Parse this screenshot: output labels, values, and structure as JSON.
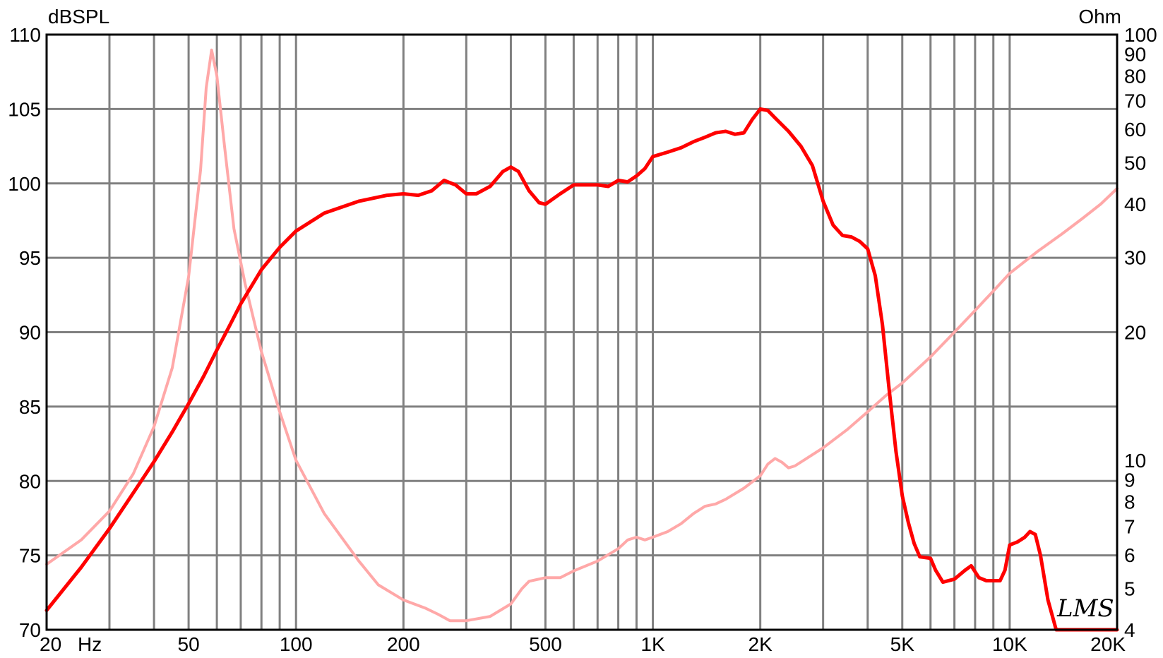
{
  "chart_data": {
    "type": "line",
    "title": "",
    "x_scale": "log",
    "xlim": [
      20,
      20000
    ],
    "x_tick_values": [
      20,
      50,
      100,
      200,
      500,
      1000,
      2000,
      5000,
      10000,
      20000
    ],
    "x_tick_labels": [
      "20",
      "50",
      "100",
      "200",
      "500",
      "1K",
      "2K",
      "5K",
      "10K",
      "20K"
    ],
    "x_unit_label": "Hz",
    "y_left": {
      "label": "dBSPL",
      "lim": [
        70,
        110
      ],
      "ticks": [
        70,
        75,
        80,
        85,
        90,
        95,
        100,
        105,
        110
      ]
    },
    "y_right": {
      "label": "Ohm",
      "scale": "log",
      "lim": [
        4,
        100
      ],
      "ticks": [
        4,
        5,
        6,
        7,
        8,
        9,
        10,
        20,
        30,
        40,
        50,
        60,
        70,
        80,
        90,
        100
      ]
    },
    "grid": true,
    "logo": "LMS",
    "series": [
      {
        "axis": "left",
        "color": "#ff0000",
        "points": [
          [
            20,
            71.3
          ],
          [
            25,
            74.2
          ],
          [
            30,
            76.8
          ],
          [
            35,
            79.2
          ],
          [
            40,
            81.3
          ],
          [
            45,
            83.3
          ],
          [
            50,
            85.2
          ],
          [
            55,
            87.0
          ],
          [
            60,
            88.8
          ],
          [
            65,
            90.4
          ],
          [
            70,
            91.9
          ],
          [
            80,
            94.2
          ],
          [
            90,
            95.7
          ],
          [
            100,
            96.8
          ],
          [
            120,
            98.0
          ],
          [
            150,
            98.8
          ],
          [
            180,
            99.2
          ],
          [
            200,
            99.3
          ],
          [
            220,
            99.2
          ],
          [
            240,
            99.5
          ],
          [
            260,
            100.2
          ],
          [
            280,
            99.9
          ],
          [
            300,
            99.3
          ],
          [
            320,
            99.3
          ],
          [
            350,
            99.8
          ],
          [
            380,
            100.8
          ],
          [
            400,
            101.1
          ],
          [
            420,
            100.8
          ],
          [
            450,
            99.5
          ],
          [
            480,
            98.7
          ],
          [
            500,
            98.6
          ],
          [
            550,
            99.3
          ],
          [
            600,
            99.9
          ],
          [
            700,
            99.9
          ],
          [
            750,
            99.8
          ],
          [
            800,
            100.2
          ],
          [
            850,
            100.1
          ],
          [
            900,
            100.5
          ],
          [
            950,
            101.0
          ],
          [
            1000,
            101.8
          ],
          [
            1100,
            102.1
          ],
          [
            1200,
            102.4
          ],
          [
            1300,
            102.8
          ],
          [
            1400,
            103.1
          ],
          [
            1500,
            103.4
          ],
          [
            1600,
            103.5
          ],
          [
            1700,
            103.3
          ],
          [
            1800,
            103.4
          ],
          [
            1900,
            104.3
          ],
          [
            2000,
            105.0
          ],
          [
            2100,
            104.9
          ],
          [
            2200,
            104.4
          ],
          [
            2400,
            103.5
          ],
          [
            2600,
            102.5
          ],
          [
            2800,
            101.2
          ],
          [
            3000,
            98.8
          ],
          [
            3200,
            97.2
          ],
          [
            3400,
            96.5
          ],
          [
            3600,
            96.4
          ],
          [
            3800,
            96.1
          ],
          [
            4000,
            95.6
          ],
          [
            4200,
            93.8
          ],
          [
            4400,
            90.5
          ],
          [
            4600,
            86.0
          ],
          [
            4800,
            82.0
          ],
          [
            5000,
            79.0
          ],
          [
            5200,
            77.2
          ],
          [
            5400,
            75.8
          ],
          [
            5600,
            74.9
          ],
          [
            6000,
            74.8
          ],
          [
            6200,
            74.0
          ],
          [
            6500,
            73.2
          ],
          [
            7000,
            73.4
          ],
          [
            7500,
            74.0
          ],
          [
            7800,
            74.3
          ],
          [
            8200,
            73.5
          ],
          [
            8600,
            73.3
          ],
          [
            9000,
            73.3
          ],
          [
            9400,
            73.3
          ],
          [
            9700,
            74.0
          ],
          [
            10000,
            75.7
          ],
          [
            10500,
            75.9
          ],
          [
            11000,
            76.2
          ],
          [
            11400,
            76.6
          ],
          [
            11800,
            76.4
          ],
          [
            12200,
            75.0
          ],
          [
            12800,
            72.0
          ],
          [
            13500,
            70.0
          ],
          [
            20000,
            70.0
          ]
        ]
      },
      {
        "axis": "right",
        "color": "#ffa8a8",
        "points": [
          [
            20,
            5.7
          ],
          [
            25,
            6.5
          ],
          [
            30,
            7.6
          ],
          [
            35,
            9.3
          ],
          [
            40,
            12.0
          ],
          [
            45,
            16.5
          ],
          [
            50,
            27.0
          ],
          [
            54,
            48.0
          ],
          [
            56,
            75.0
          ],
          [
            58,
            92.0
          ],
          [
            60,
            80.0
          ],
          [
            63,
            55.0
          ],
          [
            67,
            35.0
          ],
          [
            72,
            26.0
          ],
          [
            80,
            18.0
          ],
          [
            90,
            13.0
          ],
          [
            100,
            10.0
          ],
          [
            120,
            7.5
          ],
          [
            150,
            5.8
          ],
          [
            170,
            5.1
          ],
          [
            200,
            4.7
          ],
          [
            230,
            4.5
          ],
          [
            250,
            4.35
          ],
          [
            270,
            4.2
          ],
          [
            300,
            4.2
          ],
          [
            350,
            4.3
          ],
          [
            400,
            4.6
          ],
          [
            430,
            5.0
          ],
          [
            450,
            5.2
          ],
          [
            500,
            5.3
          ],
          [
            550,
            5.3
          ],
          [
            600,
            5.5
          ],
          [
            700,
            5.8
          ],
          [
            800,
            6.2
          ],
          [
            850,
            6.5
          ],
          [
            900,
            6.6
          ],
          [
            950,
            6.5
          ],
          [
            1000,
            6.6
          ],
          [
            1100,
            6.8
          ],
          [
            1200,
            7.1
          ],
          [
            1300,
            7.5
          ],
          [
            1400,
            7.8
          ],
          [
            1500,
            7.9
          ],
          [
            1600,
            8.1
          ],
          [
            1800,
            8.6
          ],
          [
            2000,
            9.2
          ],
          [
            2100,
            9.8
          ],
          [
            2200,
            10.1
          ],
          [
            2300,
            9.9
          ],
          [
            2400,
            9.6
          ],
          [
            2500,
            9.7
          ],
          [
            3000,
            10.7
          ],
          [
            3500,
            11.8
          ],
          [
            4000,
            13.0
          ],
          [
            4500,
            14.2
          ],
          [
            5000,
            15.2
          ],
          [
            6000,
            17.5
          ],
          [
            7000,
            20.0
          ],
          [
            8000,
            22.5
          ],
          [
            9000,
            25.0
          ],
          [
            10000,
            27.5
          ],
          [
            12000,
            31.0
          ],
          [
            14000,
            34.0
          ],
          [
            16000,
            37.0
          ],
          [
            18000,
            40.0
          ],
          [
            20000,
            43.5
          ]
        ]
      }
    ]
  }
}
